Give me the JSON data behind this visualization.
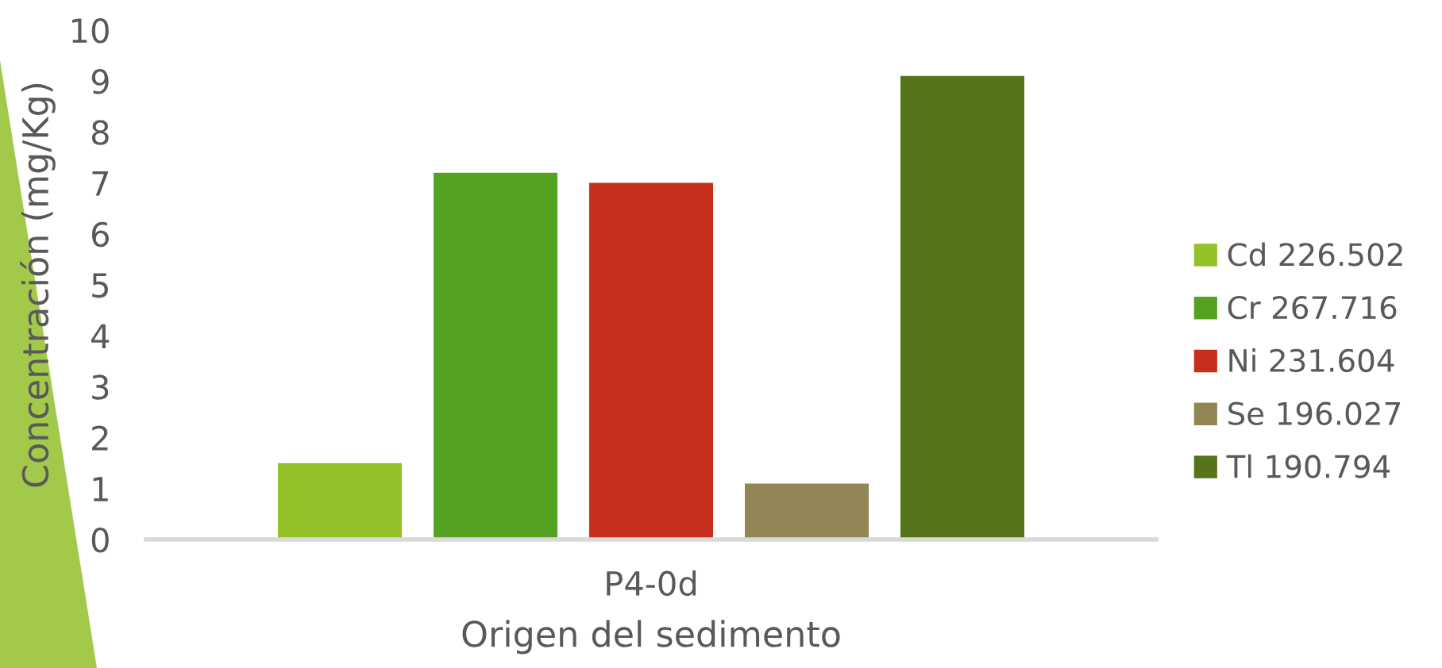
{
  "chart_data": {
    "type": "bar",
    "xlabel": "Origen del sedimento",
    "ylabel": "Concentración (mg/Kg)",
    "categories": [
      "P4-0d"
    ],
    "series": [
      {
        "name": "Cd 226.502",
        "color": "#93c127",
        "values": [
          1.5
        ]
      },
      {
        "name": "Cr 267.716",
        "color": "#55a222",
        "values": [
          7.2
        ]
      },
      {
        "name": "Ni 231.604",
        "color": "#c52f1b",
        "values": [
          7.0
        ]
      },
      {
        "name": "Se 196.027",
        "color": "#928656",
        "values": [
          1.1
        ]
      },
      {
        "name": "Tl 190.794",
        "color": "#56741a",
        "values": [
          9.1
        ]
      }
    ],
    "ylim": [
      0,
      10
    ],
    "yticks": [
      0,
      1,
      2,
      3,
      4,
      5,
      6,
      7,
      8,
      9,
      10
    ],
    "legend": "right"
  }
}
